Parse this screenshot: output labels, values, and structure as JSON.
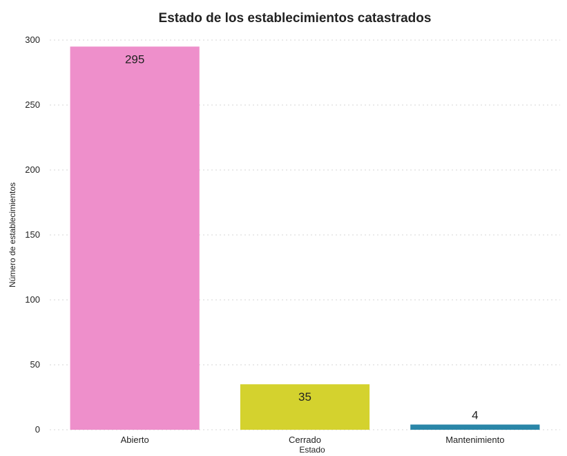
{
  "chart_data": {
    "type": "bar",
    "title": "Estado de los establecimientos catastrados",
    "xlabel": "Estado",
    "ylabel": "Número de establecimientos",
    "categories": [
      "Abierto",
      "Cerrado",
      "Mantenimiento"
    ],
    "values": [
      295,
      35,
      4
    ],
    "colors": [
      "#ee8fcb",
      "#d4d22e",
      "#2a86a8"
    ],
    "ylim": [
      0,
      300
    ],
    "yticks": [
      0,
      50,
      100,
      150,
      200,
      250,
      300
    ],
    "grid": true,
    "legend": "none",
    "data_labels": true
  }
}
